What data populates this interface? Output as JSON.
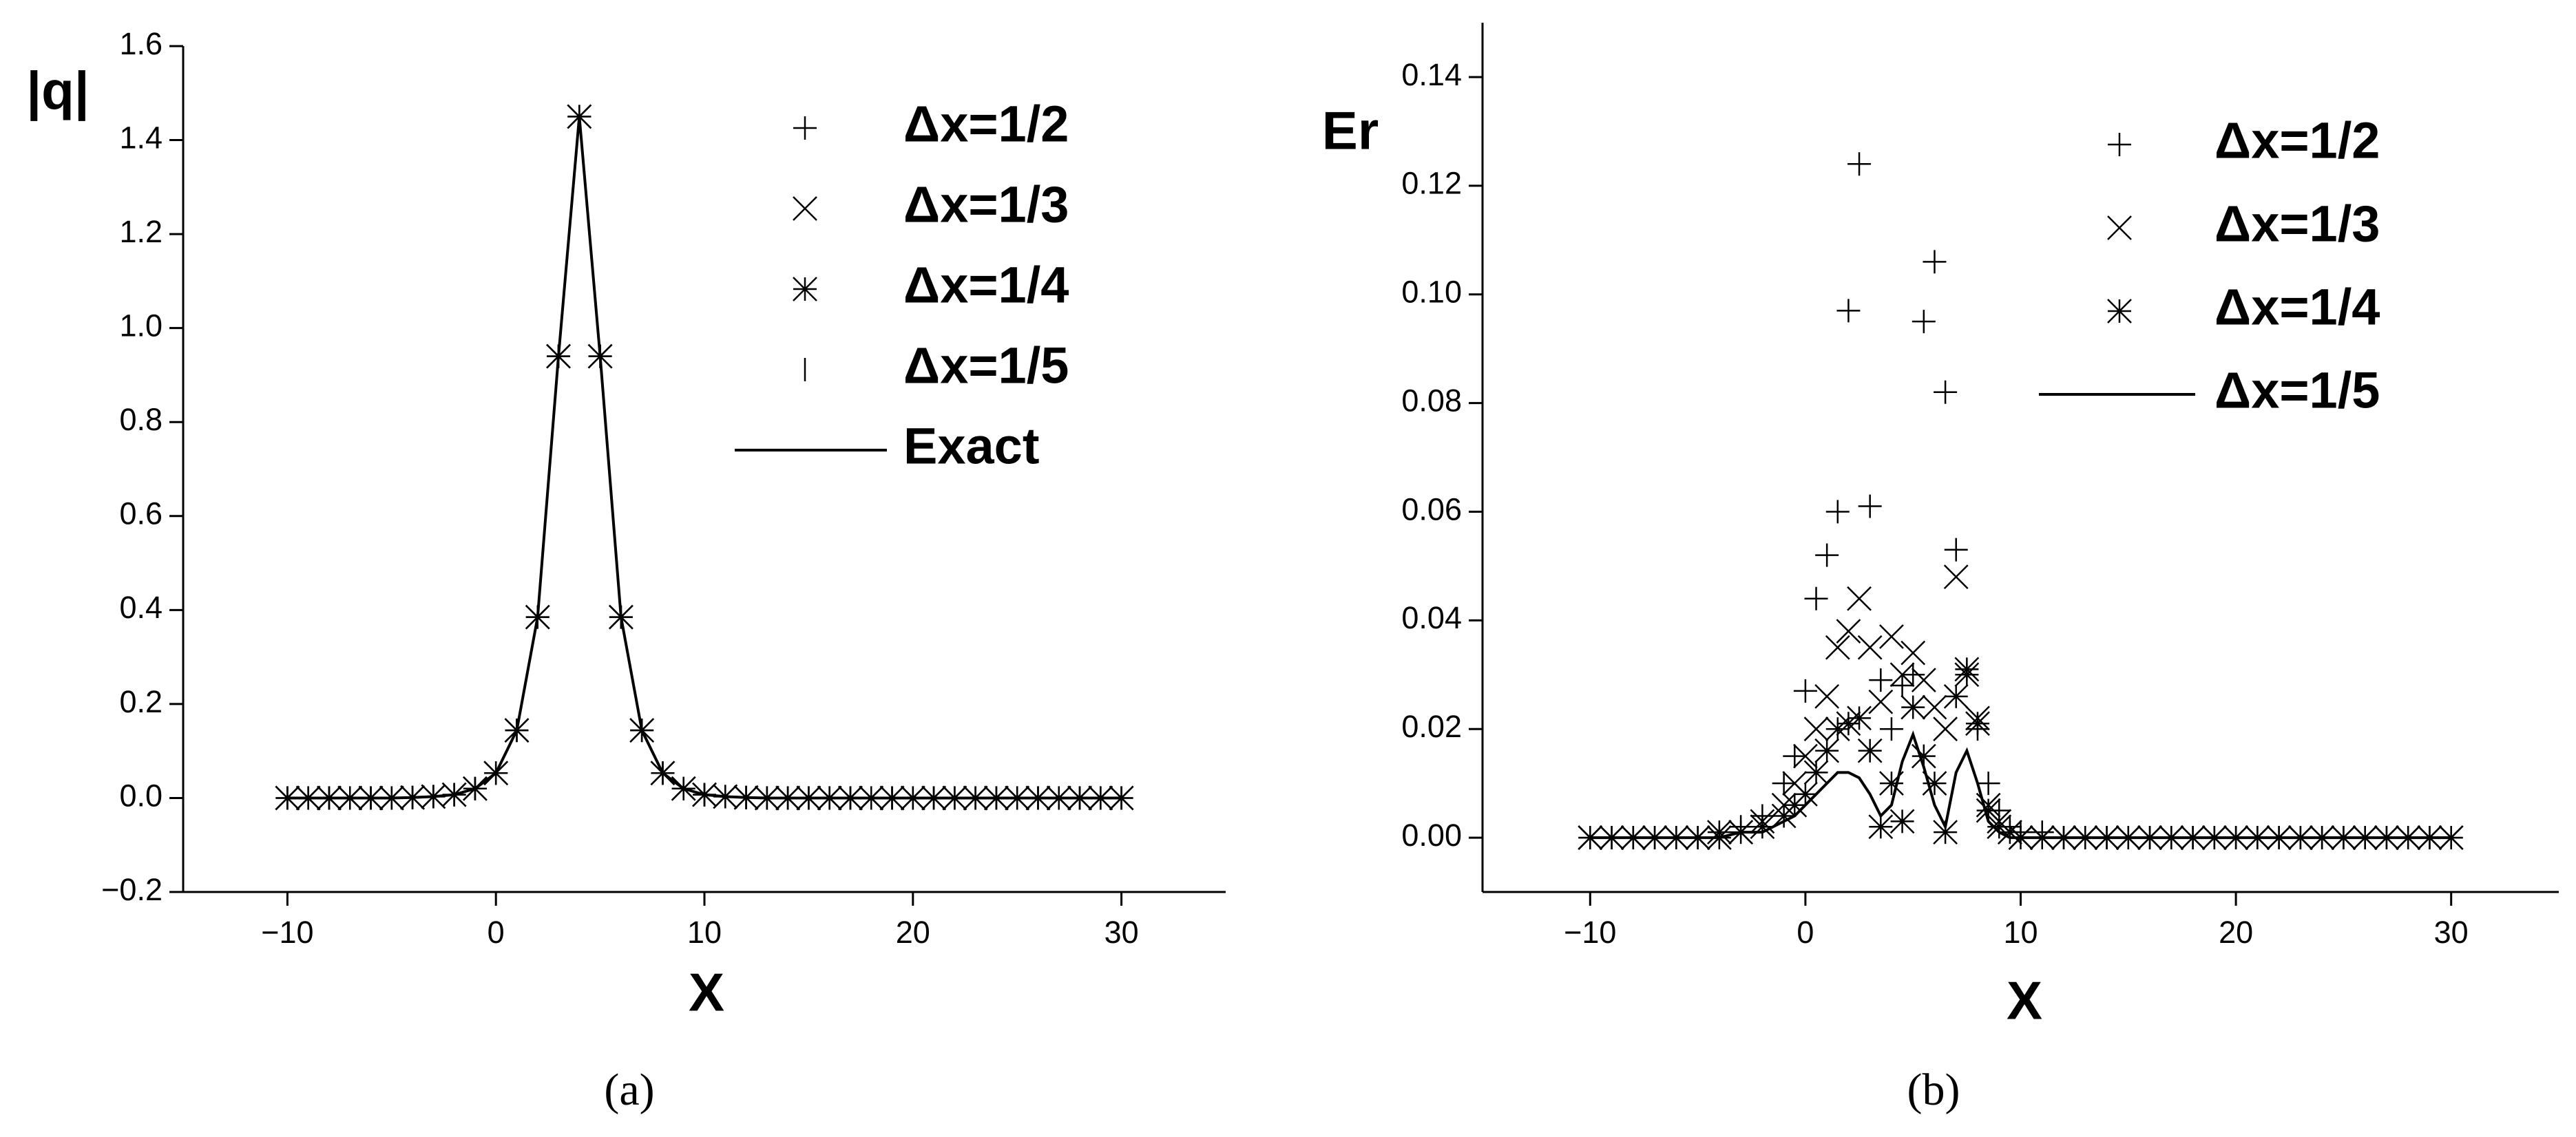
{
  "chart_data": [
    {
      "type": "line",
      "caption": "(a)",
      "xlabel": "X",
      "ylabel": "|q|",
      "legend": "upper right",
      "xlim": [
        -15,
        35
      ],
      "ylim": [
        -0.2,
        1.6
      ],
      "xticks": [
        {
          "value": -10,
          "label": "−10"
        },
        0,
        10,
        20,
        30
      ],
      "yticks": [
        {
          "value": -0.2,
          "label": "−0.2"
        },
        {
          "value": 0,
          "label": "0.0"
        },
        0.2,
        0.4,
        0.6,
        0.8,
        {
          "value": 1,
          "label": "1.0"
        },
        1.2,
        1.4,
        1.6
      ],
      "x": [
        -10,
        -9,
        -8,
        -7,
        -6,
        -5,
        -4,
        -3,
        -2,
        -1,
        0,
        1,
        2,
        3,
        4,
        5,
        6,
        7,
        8,
        9,
        10,
        11,
        12,
        13,
        14,
        15,
        16,
        17,
        18,
        19,
        20,
        21,
        22,
        23,
        24,
        25,
        26,
        27,
        28,
        29,
        30
      ],
      "series": [
        {
          "name": "Δx=1/2",
          "marker": "plus",
          "color": "#000000",
          "values": [
            0,
            0,
            0,
            0,
            0,
            0,
            0.001,
            0.003,
            0.007,
            0.02,
            0.053,
            0.144,
            0.385,
            0.94,
            1.45,
            0.94,
            0.385,
            0.144,
            0.053,
            0.02,
            0.007,
            0.003,
            0.001,
            0,
            0,
            0,
            0,
            0,
            0,
            0,
            0,
            0,
            0,
            0,
            0,
            0,
            0,
            0,
            0,
            0,
            0
          ]
        },
        {
          "name": "Δx=1/3",
          "marker": "cross",
          "color": "#000000",
          "values": [
            0,
            0,
            0,
            0,
            0,
            0,
            0.001,
            0.003,
            0.007,
            0.02,
            0.053,
            0.144,
            0.385,
            0.94,
            1.45,
            0.94,
            0.385,
            0.144,
            0.053,
            0.02,
            0.007,
            0.003,
            0.001,
            0,
            0,
            0,
            0,
            0,
            0,
            0,
            0,
            0,
            0,
            0,
            0,
            0,
            0,
            0,
            0,
            0,
            0
          ]
        },
        {
          "name": "Δx=1/4",
          "marker": "star",
          "color": "#000000",
          "values": [
            0,
            0,
            0,
            0,
            0,
            0,
            0.001,
            0.003,
            0.007,
            0.02,
            0.053,
            0.144,
            0.385,
            0.94,
            1.45,
            0.94,
            0.385,
            0.144,
            0.053,
            0.02,
            0.007,
            0.003,
            0.001,
            0,
            0,
            0,
            0,
            0,
            0,
            0,
            0,
            0,
            0,
            0,
            0,
            0,
            0,
            0,
            0,
            0,
            0
          ]
        },
        {
          "name": "Δx=1/5",
          "marker": "vbar",
          "color": "#000000",
          "values": [
            0,
            0,
            0,
            0,
            0,
            0,
            0.001,
            0.003,
            0.007,
            0.02,
            0.053,
            0.144,
            0.385,
            0.94,
            1.45,
            0.94,
            0.385,
            0.144,
            0.053,
            0.02,
            0.007,
            0.003,
            0.001,
            0,
            0,
            0,
            0,
            0,
            0,
            0,
            0,
            0,
            0,
            0,
            0,
            0,
            0,
            0,
            0,
            0,
            0
          ]
        },
        {
          "name": "Exact",
          "marker": "line",
          "color": "#000000",
          "values": [
            0,
            0,
            0,
            0,
            0,
            0,
            0.001,
            0.003,
            0.007,
            0.02,
            0.053,
            0.144,
            0.385,
            0.94,
            1.45,
            0.94,
            0.385,
            0.144,
            0.053,
            0.02,
            0.007,
            0.003,
            0.001,
            0,
            0,
            0,
            0,
            0,
            0,
            0,
            0,
            0,
            0,
            0,
            0,
            0,
            0,
            0,
            0,
            0,
            0
          ]
        }
      ]
    },
    {
      "type": "line",
      "caption": "(b)",
      "xlabel": "X",
      "ylabel": "Er",
      "legend": "upper right",
      "xlim": [
        -15,
        35
      ],
      "ylim": [
        -0.01,
        0.15
      ],
      "xticks": [
        {
          "value": -10,
          "label": "−10"
        },
        0,
        10,
        20,
        30
      ],
      "yticks": [
        {
          "value": 0,
          "label": "0.00"
        },
        0.02,
        0.04,
        0.06,
        0.08,
        {
          "value": 0.1,
          "label": "0.10"
        },
        0.12,
        0.14
      ],
      "x": [
        -10,
        -9,
        -8,
        -7,
        -6,
        -5,
        -4,
        -3,
        -2,
        -1,
        -0.5,
        0,
        0.5,
        1,
        1.5,
        2,
        2.5,
        3,
        3.5,
        4,
        4.5,
        5,
        5.5,
        6,
        6.5,
        7,
        7.5,
        8,
        8.5,
        9,
        9.5,
        10,
        11,
        12,
        13,
        14,
        15,
        16,
        17,
        18,
        19,
        20,
        21,
        22,
        23,
        24,
        25,
        26,
        27,
        28,
        29,
        30
      ],
      "series": [
        {
          "name": "Δx=1/2",
          "marker": "plus",
          "color": "#000000",
          "values": [
            0,
            0,
            0,
            0,
            0,
            0,
            0.001,
            0.002,
            0.004,
            0.01,
            0.015,
            0.027,
            0.044,
            0.052,
            0.06,
            0.097,
            0.124,
            0.061,
            0.029,
            0.02,
            0.028,
            0.03,
            0.095,
            0.106,
            0.082,
            0.053,
            0.03,
            0.02,
            0.01,
            0.005,
            0.002,
            0.001,
            0.001,
            0,
            0,
            0,
            0,
            0,
            0,
            0,
            0,
            0,
            0,
            0,
            0,
            0,
            0,
            0,
            0,
            0,
            0,
            0
          ]
        },
        {
          "name": "Δx=1/3",
          "marker": "cross",
          "color": "#000000",
          "values": [
            0,
            0,
            0,
            0,
            0,
            0,
            0.001,
            0.001,
            0.003,
            0.006,
            0.01,
            0.015,
            0.02,
            0.026,
            0.035,
            0.038,
            0.044,
            0.035,
            0.025,
            0.037,
            0.03,
            0.034,
            0.029,
            0.024,
            0.02,
            0.048,
            0.03,
            0.022,
            0.006,
            0.003,
            0.001,
            0,
            0,
            0,
            0,
            0,
            0,
            0,
            0,
            0,
            0,
            0,
            0,
            0,
            0,
            0,
            0,
            0,
            0,
            0,
            0,
            0
          ]
        },
        {
          "name": "Δx=1/4",
          "marker": "star",
          "color": "#000000",
          "values": [
            0,
            0,
            0,
            0,
            0,
            0,
            0,
            0.001,
            0.002,
            0.004,
            0.006,
            0.008,
            0.012,
            0.016,
            0.02,
            0.021,
            0.022,
            0.016,
            0.002,
            0.01,
            0.003,
            0.024,
            0.015,
            0.01,
            0.001,
            0.026,
            0.031,
            0.021,
            0.005,
            0.002,
            0.001,
            0,
            0,
            0,
            0,
            0,
            0,
            0,
            0,
            0,
            0,
            0,
            0,
            0,
            0,
            0,
            0,
            0,
            0,
            0,
            0,
            0
          ]
        },
        {
          "name": "Δx=1/5",
          "marker": "line",
          "color": "#000000",
          "values": [
            0,
            0,
            0,
            0,
            0,
            0,
            0,
            0.001,
            0.001,
            0.003,
            0.004,
            0.006,
            0.008,
            0.01,
            0.012,
            0.012,
            0.011,
            0.008,
            0.004,
            0.006,
            0.014,
            0.019,
            0.013,
            0.006,
            0.002,
            0.012,
            0.016,
            0.01,
            0.003,
            0.001,
            0,
            0,
            0,
            0,
            0,
            0,
            0,
            0,
            0,
            0,
            0,
            0,
            0,
            0,
            0,
            0,
            0,
            0,
            0,
            0,
            0,
            0
          ]
        }
      ]
    }
  ]
}
